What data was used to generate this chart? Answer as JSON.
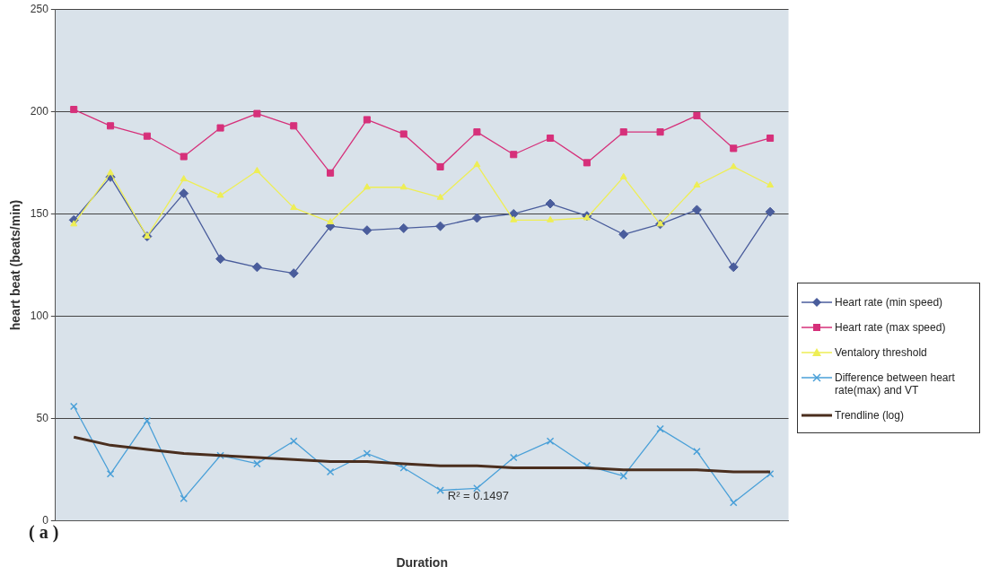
{
  "chart_data": {
    "type": "line",
    "xlabel": "Duration",
    "ylabel": "heart beat (beats/min)",
    "categories": [
      null,
      null,
      null,
      null,
      null,
      null,
      null,
      null,
      null,
      null,
      null,
      null,
      null,
      null,
      null,
      null,
      null,
      null,
      null,
      null
    ],
    "series": [
      {
        "name": "Heart rate (min speed)",
        "color": "#4a5d9c",
        "marker": "diamond",
        "values": [
          147,
          168,
          139,
          160,
          128,
          124,
          121,
          144,
          142,
          143,
          144,
          148,
          150,
          155,
          149,
          140,
          145,
          152,
          124,
          151
        ]
      },
      {
        "name": "Heart rate (max speed)",
        "color": "#d6307a",
        "marker": "square",
        "values": [
          201,
          193,
          188,
          178,
          192,
          199,
          193,
          170,
          196,
          189,
          173,
          190,
          179,
          187,
          175,
          190,
          190,
          198,
          182,
          187
        ]
      },
      {
        "name": "Ventalory threshold",
        "color": "#eeee55",
        "marker": "triangle",
        "values": [
          145,
          170,
          139,
          167,
          159,
          171,
          153,
          146,
          163,
          163,
          158,
          174,
          147,
          147,
          148,
          168,
          145,
          164,
          173,
          164
        ]
      },
      {
        "name": "Difference between heart rate(max) and VT",
        "color": "#4aa0d8",
        "marker": "cross",
        "values": [
          56,
          23,
          49,
          11,
          32,
          28,
          39,
          24,
          33,
          26,
          15,
          16,
          31,
          39,
          27,
          22,
          45,
          34,
          9,
          23
        ]
      },
      {
        "name": "Trendline (log)",
        "type": "line",
        "color": "#4a2e1e",
        "marker": "none",
        "values": [
          41,
          37,
          35,
          33,
          32,
          31,
          30,
          29,
          29,
          28,
          27,
          27,
          26,
          26,
          26,
          25,
          25,
          25,
          24,
          24
        ]
      }
    ],
    "ylim": [
      0,
      250
    ],
    "yticks": [
      0,
      50,
      100,
      150,
      200,
      250
    ],
    "grid": "y",
    "legend": "right",
    "annotations": [
      "R² = 0.1497",
      "( a )"
    ]
  }
}
